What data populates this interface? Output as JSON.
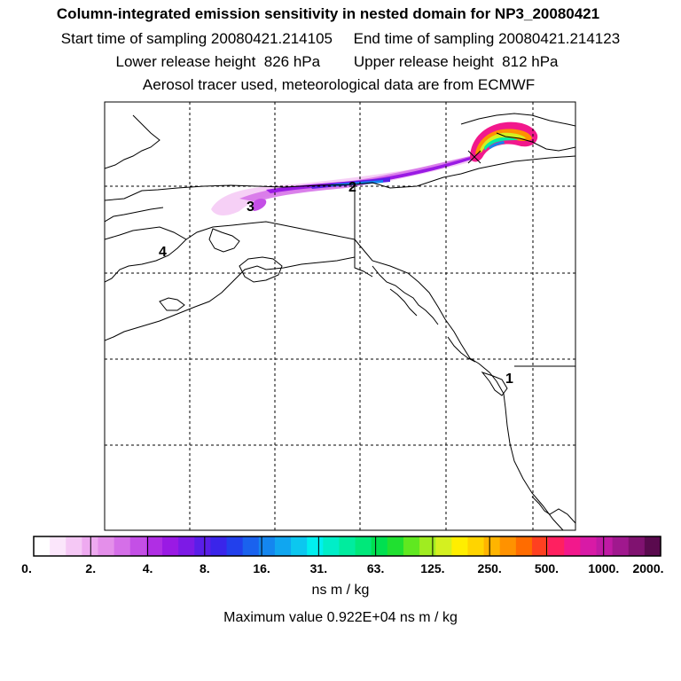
{
  "header": {
    "title": "Column-integrated emission sensitivity in nested domain for NP3_20080421",
    "sampling_line": "Start time of sampling 20080421.214105     End time of sampling 20080421.214123",
    "release_line": "Lower release height  826 hPa        Upper release height  812 hPa",
    "tracer_line": "Aerosol tracer used, meteorological data are from ECMWF"
  },
  "map": {
    "day_labels": [
      "2",
      "3",
      "4",
      "1"
    ],
    "gridlines": {
      "style": "dashed"
    }
  },
  "colorbar": {
    "tick_labels": [
      "0.",
      "2.",
      "4.",
      "8.",
      "16.",
      "31.",
      "63.",
      "125.",
      "250.",
      "500.",
      "1000.",
      "2000."
    ],
    "units": "ns m / kg",
    "colors": [
      "#ffffff",
      "#fbe6fb",
      "#f5c8f5",
      "#eeaaf0",
      "#e48fea",
      "#d56fe8",
      "#c44fe6",
      "#b02ee4",
      "#9a1ae4",
      "#7d1ae6",
      "#5a1ee8",
      "#3a25ea",
      "#2240ec",
      "#1a62ee",
      "#1486ef",
      "#10a6f0",
      "#0cc7ef",
      "#00efef",
      "#00eec8",
      "#00ec9e",
      "#00e87a",
      "#00e050",
      "#20e030",
      "#60e820",
      "#a0ec20",
      "#d4f020",
      "#ffee00",
      "#ffd400",
      "#ffb400",
      "#ff9200",
      "#ff6c00",
      "#ff4020",
      "#ff2060",
      "#f2188c",
      "#d81aa6",
      "#c01aa4",
      "#a0188e",
      "#801270",
      "#5a0a4e"
    ]
  },
  "max_value": "Maximum value  0.922E+04 ns m / kg"
}
